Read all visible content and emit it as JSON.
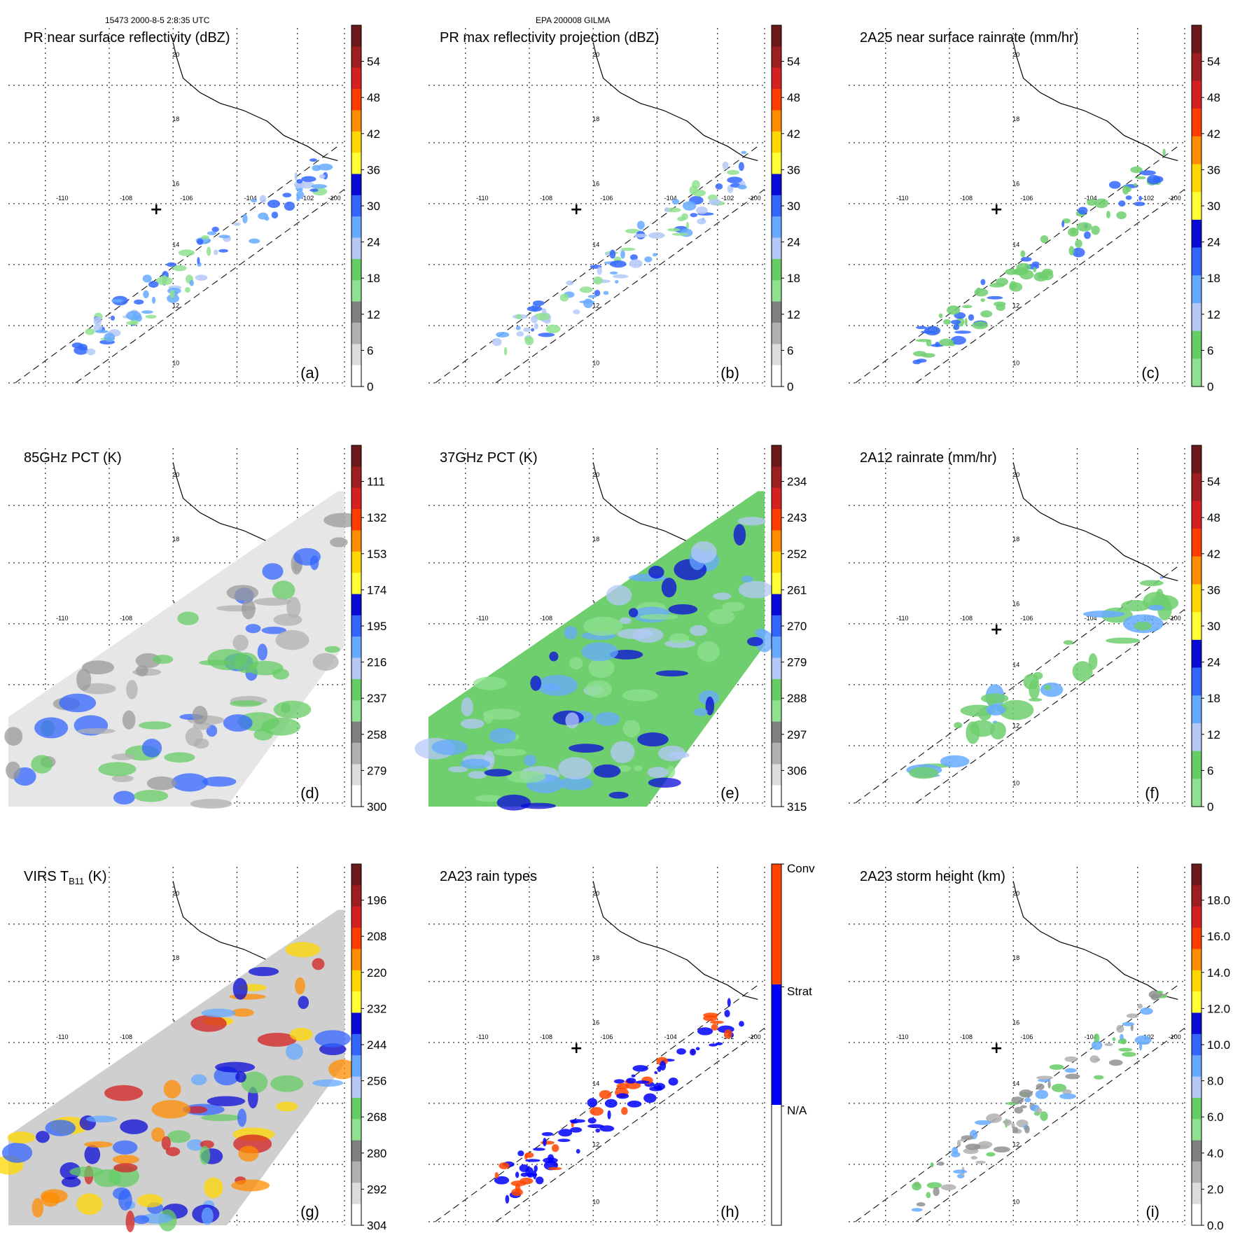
{
  "header": {
    "left": "15473 2000-8-5 2:8:35 UTC",
    "center": "EPA 200008 GILMA"
  },
  "map": {
    "lon_ticks": [
      "-110",
      "-108",
      "-106",
      "-104",
      "-102",
      "-100"
    ],
    "lat_ticks": [
      "20",
      "18",
      "16",
      "14",
      "12",
      "10"
    ]
  },
  "panels": [
    {
      "id": "a",
      "title": "PR near surface reflectivity (dBZ)",
      "label": "(a)",
      "colorbar": [
        "54",
        "48",
        "42",
        "36",
        "30",
        "24",
        "18",
        "12",
        "6",
        "0"
      ],
      "colors": [
        "#6b1a1a",
        "#9c1e1e",
        "#d42020",
        "#ff3c00",
        "#ff8c00",
        "#ffd700",
        "#ffff33",
        "#0a0ad8",
        "#3366ff",
        "#66aaff",
        "#b4c8f8",
        "#66cc66",
        "#8fe08f",
        "#808080",
        "#b0b0b0",
        "#dcdcdc",
        "#ffffff"
      ]
    },
    {
      "id": "b",
      "title": "PR max reflectivity projection (dBZ)",
      "label": "(b)",
      "colorbar": [
        "54",
        "48",
        "42",
        "36",
        "30",
        "24",
        "18",
        "12",
        "6",
        "0"
      ],
      "colors": [
        "#6b1a1a",
        "#9c1e1e",
        "#d42020",
        "#ff3c00",
        "#ff8c00",
        "#ffd700",
        "#ffff33",
        "#0a0ad8",
        "#3366ff",
        "#66aaff",
        "#b4c8f8",
        "#66cc66",
        "#8fe08f",
        "#808080",
        "#b0b0b0",
        "#dcdcdc",
        "#ffffff"
      ]
    },
    {
      "id": "c",
      "title": "2A25 near surface rainrate (mm/hr)",
      "label": "(c)",
      "colorbar": [
        "54",
        "48",
        "42",
        "36",
        "30",
        "24",
        "18",
        "12",
        "6",
        "0"
      ],
      "colors": [
        "#6b1a1a",
        "#9c1e1e",
        "#d42020",
        "#ff3c00",
        "#ff8c00",
        "#ffd700",
        "#ffff33",
        "#0a0ad8",
        "#3366ff",
        "#66aaff",
        "#b4c8f8",
        "#66cc66",
        "#8fe08f"
      ]
    },
    {
      "id": "d",
      "title": "85GHz PCT (K)",
      "label": "(d)",
      "colorbar": [
        "111",
        "132",
        "153",
        "174",
        "195",
        "216",
        "237",
        "258",
        "279",
        "300"
      ],
      "colors": [
        "#6b1a1a",
        "#9c1e1e",
        "#d42020",
        "#ff3c00",
        "#ff8c00",
        "#ffd700",
        "#ffff33",
        "#0a0ad8",
        "#3366ff",
        "#66aaff",
        "#b4c8f8",
        "#66cc66",
        "#8fe08f",
        "#808080",
        "#b0b0b0",
        "#dcdcdc",
        "#ffffff"
      ]
    },
    {
      "id": "e",
      "title": "37GHz PCT (K)",
      "label": "(e)",
      "colorbar": [
        "234",
        "243",
        "252",
        "261",
        "270",
        "279",
        "288",
        "297",
        "306",
        "315"
      ],
      "colors": [
        "#6b1a1a",
        "#9c1e1e",
        "#d42020",
        "#ff3c00",
        "#ff8c00",
        "#ffd700",
        "#ffff33",
        "#0a0ad8",
        "#3366ff",
        "#66aaff",
        "#b4c8f8",
        "#66cc66",
        "#8fe08f",
        "#808080",
        "#b0b0b0",
        "#dcdcdc",
        "#ffffff"
      ]
    },
    {
      "id": "f",
      "title": "2A12 rainrate (mm/hr)",
      "label": "(f)",
      "colorbar": [
        "54",
        "48",
        "42",
        "36",
        "30",
        "24",
        "18",
        "12",
        "6",
        "0"
      ],
      "colors": [
        "#6b1a1a",
        "#9c1e1e",
        "#d42020",
        "#ff3c00",
        "#ff8c00",
        "#ffd700",
        "#ffff33",
        "#0a0ad8",
        "#3366ff",
        "#66aaff",
        "#b4c8f8",
        "#66cc66",
        "#8fe08f"
      ]
    },
    {
      "id": "g",
      "title": "VIRS T",
      "title_sub": "B11",
      "title_post": " (K)",
      "label": "(g)",
      "colorbar": [
        "196",
        "208",
        "220",
        "232",
        "244",
        "256",
        "268",
        "280",
        "292",
        "304"
      ],
      "colors": [
        "#6b1a1a",
        "#9c1e1e",
        "#d42020",
        "#ff3c00",
        "#ff8c00",
        "#ffd700",
        "#ffff33",
        "#0a0ad8",
        "#3366ff",
        "#66aaff",
        "#b4c8f8",
        "#66cc66",
        "#8fe08f",
        "#808080",
        "#b0b0b0",
        "#dcdcdc",
        "#ffffff"
      ]
    },
    {
      "id": "h",
      "title": "2A23 rain types",
      "label": "(h)",
      "colorbar": [
        "Conv",
        "Strat",
        "N/A"
      ],
      "colors": [
        "#ff4500",
        "#0000ff",
        "#ffffff"
      ]
    },
    {
      "id": "i",
      "title": "2A23 storm height (km)",
      "label": "(i)",
      "colorbar": [
        "18.0",
        "16.0",
        "14.0",
        "12.0",
        "10.0",
        "8.0",
        "6.0",
        "4.0",
        "2.0",
        "0.0"
      ],
      "colors": [
        "#6b1a1a",
        "#9c1e1e",
        "#d42020",
        "#ff3c00",
        "#ff8c00",
        "#ffd700",
        "#ffff33",
        "#0a0ad8",
        "#3366ff",
        "#66aaff",
        "#b4c8f8",
        "#66cc66",
        "#8fe08f",
        "#808080",
        "#b0b0b0",
        "#dcdcdc",
        "#ffffff"
      ]
    }
  ]
}
